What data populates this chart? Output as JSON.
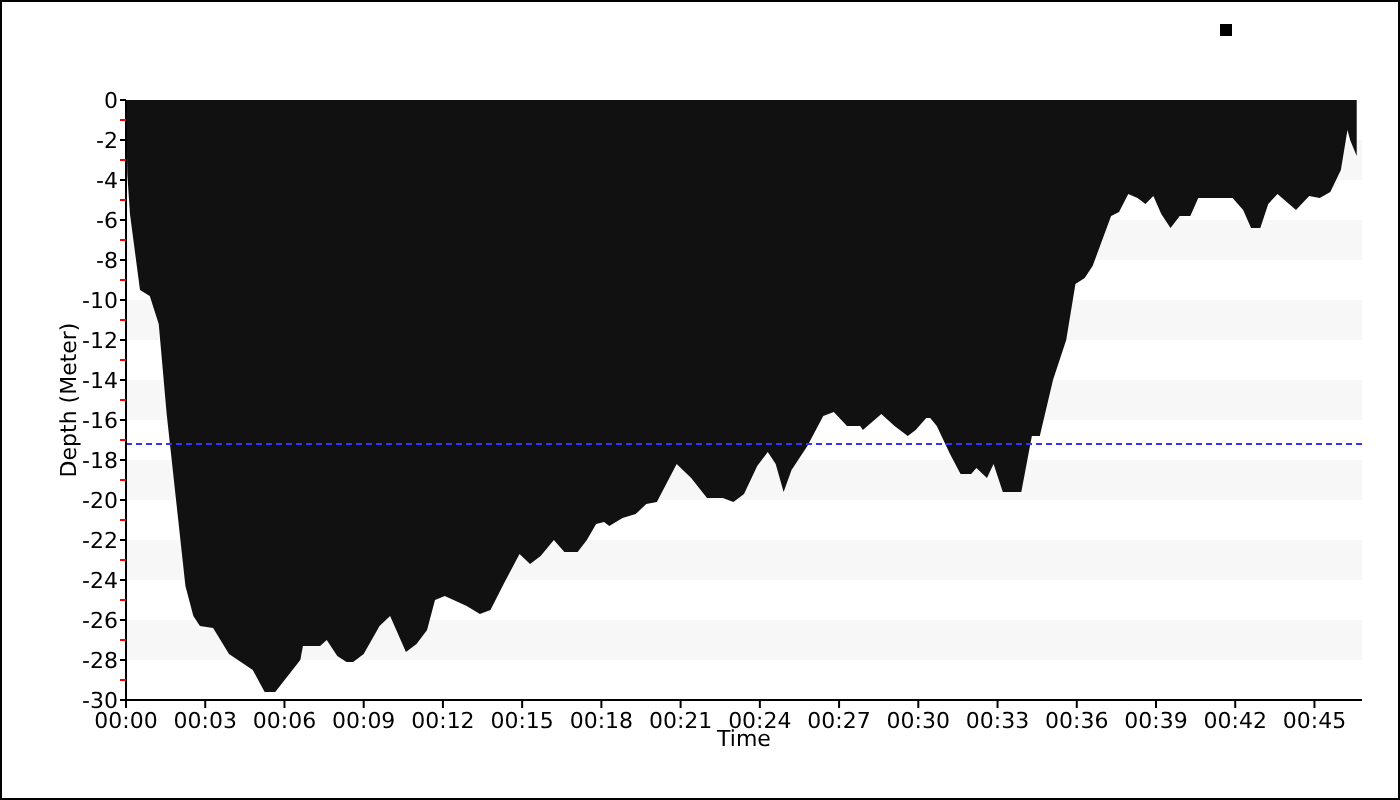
{
  "chart_data": {
    "type": "area",
    "xlabel": "Time",
    "ylabel": "Depth (Meter)",
    "xlim": [
      0,
      46.8
    ],
    "ylim": [
      -30,
      0
    ],
    "xticks": [
      {
        "value": 0,
        "label": "00:00"
      },
      {
        "value": 3,
        "label": "00:03"
      },
      {
        "value": 6,
        "label": "00:06"
      },
      {
        "value": 9,
        "label": "00:09"
      },
      {
        "value": 12,
        "label": "00:12"
      },
      {
        "value": 15,
        "label": "00:15"
      },
      {
        "value": 18,
        "label": "00:18"
      },
      {
        "value": 21,
        "label": "00:21"
      },
      {
        "value": 24,
        "label": "00:24"
      },
      {
        "value": 27,
        "label": "00:27"
      },
      {
        "value": 30,
        "label": "00:30"
      },
      {
        "value": 33,
        "label": "00:33"
      },
      {
        "value": 36,
        "label": "00:36"
      },
      {
        "value": 39,
        "label": "00:39"
      },
      {
        "value": 42,
        "label": "00:42"
      },
      {
        "value": 45,
        "label": "00:45"
      }
    ],
    "yticks": [
      0,
      {
        "value": -1,
        "label": null
      },
      -2,
      {
        "value": -3,
        "label": null
      },
      -4,
      {
        "value": -5,
        "label": null
      },
      -6,
      {
        "value": -7,
        "label": null
      },
      -8,
      {
        "value": -9,
        "label": null
      },
      -10,
      {
        "value": -11,
        "label": null
      },
      -12,
      {
        "value": -13,
        "label": null
      },
      -14,
      {
        "value": -15,
        "label": null
      },
      -16,
      {
        "value": -17,
        "label": null
      },
      -18,
      {
        "value": -19,
        "label": null
      },
      -20,
      {
        "value": -21,
        "label": null
      },
      -22,
      {
        "value": -23,
        "label": null
      },
      -24,
      {
        "value": -25,
        "label": null
      },
      -26,
      {
        "value": -27,
        "label": null
      },
      -28,
      {
        "value": -29,
        "label": null
      },
      -30
    ],
    "ref_lines": [
      {
        "axis": "y",
        "value": -17.2,
        "color": "#3333ff",
        "line_style": "dashed"
      }
    ],
    "series": [
      {
        "color": "#111111",
        "x": [
          0,
          0.05,
          0.15,
          0.53,
          0.9,
          1.24,
          1.54,
          1.92,
          2.25,
          2.55,
          2.8,
          3.3,
          3.9,
          4.8,
          5.25,
          5.65,
          6.6,
          6.7,
          7.35,
          7.6,
          8.0,
          8.35,
          8.6,
          9.0,
          9.6,
          10.0,
          10.6,
          11.0,
          11.4,
          11.7,
          12.07,
          12.9,
          13.4,
          13.8,
          14.3,
          14.9,
          15.3,
          15.7,
          16.2,
          16.6,
          17.1,
          17.45,
          17.8,
          18.1,
          18.3,
          18.8,
          19.3,
          19.7,
          20.1,
          20.85,
          21.4,
          22.0,
          22.6,
          23.0,
          23.4,
          23.9,
          24.3,
          24.6,
          24.9,
          25.2,
          25.8,
          26.0,
          26.4,
          26.8,
          27.3,
          27.8,
          27.9,
          28.6,
          29.1,
          29.6,
          29.9,
          30.3,
          30.45,
          30.7,
          31.2,
          31.6,
          32.0,
          32.2,
          32.6,
          32.85,
          33.2,
          33.9,
          34.3,
          34.6,
          35.1,
          35.4,
          35.6,
          35.95,
          36.3,
          36.6,
          37.3,
          37.6,
          37.95,
          38.3,
          38.6,
          38.9,
          39.2,
          39.55,
          39.9,
          40.3,
          40.6,
          41.9,
          42.3,
          42.6,
          42.95,
          43.25,
          43.6,
          44.3,
          44.8,
          45.2,
          45.6,
          46.0,
          46.25,
          46.35,
          46.6,
          46.6
        ],
        "values": [
          0,
          -3.7,
          -5.7,
          -9.5,
          -9.8,
          -11.2,
          -15.7,
          -20.3,
          -24.3,
          -25.8,
          -26.3,
          -26.4,
          -27.7,
          -28.5,
          -29.6,
          -29.6,
          -28,
          -27.3,
          -27.3,
          -27,
          -27.8,
          -28.1,
          -28.1,
          -27.7,
          -26.3,
          -25.8,
          -27.6,
          -27.2,
          -26.5,
          -25,
          -24.8,
          -25.3,
          -25.7,
          -25.5,
          -24.2,
          -22.7,
          -23.2,
          -22.8,
          -22,
          -22.6,
          -22.6,
          -22,
          -21.2,
          -21.1,
          -21.3,
          -20.9,
          -20.7,
          -20.2,
          -20.1,
          -18.2,
          -18.9,
          -19.9,
          -19.9,
          -20.1,
          -19.7,
          -18.3,
          -17.6,
          -18.2,
          -19.6,
          -18.5,
          -17.3,
          -16.8,
          -15.8,
          -15.6,
          -16.3,
          -16.3,
          -16.5,
          -15.7,
          -16.3,
          -16.8,
          -16.5,
          -15.9,
          -15.9,
          -16.3,
          -17.7,
          -18.7,
          -18.7,
          -18.4,
          -18.9,
          -18.2,
          -19.6,
          -19.6,
          -16.8,
          -16.8,
          -14,
          -12.8,
          -12,
          -9.2,
          -8.9,
          -8.3,
          -5.8,
          -5.6,
          -4.7,
          -4.9,
          -5.2,
          -4.8,
          -5.7,
          -6.4,
          -5.8,
          -5.8,
          -4.9,
          -4.9,
          -5.5,
          -6.4,
          -6.4,
          -5.2,
          -4.7,
          -5.5,
          -4.8,
          -4.9,
          -4.6,
          -3.5,
          -1.5,
          -2,
          -2.8,
          0
        ]
      }
    ]
  }
}
